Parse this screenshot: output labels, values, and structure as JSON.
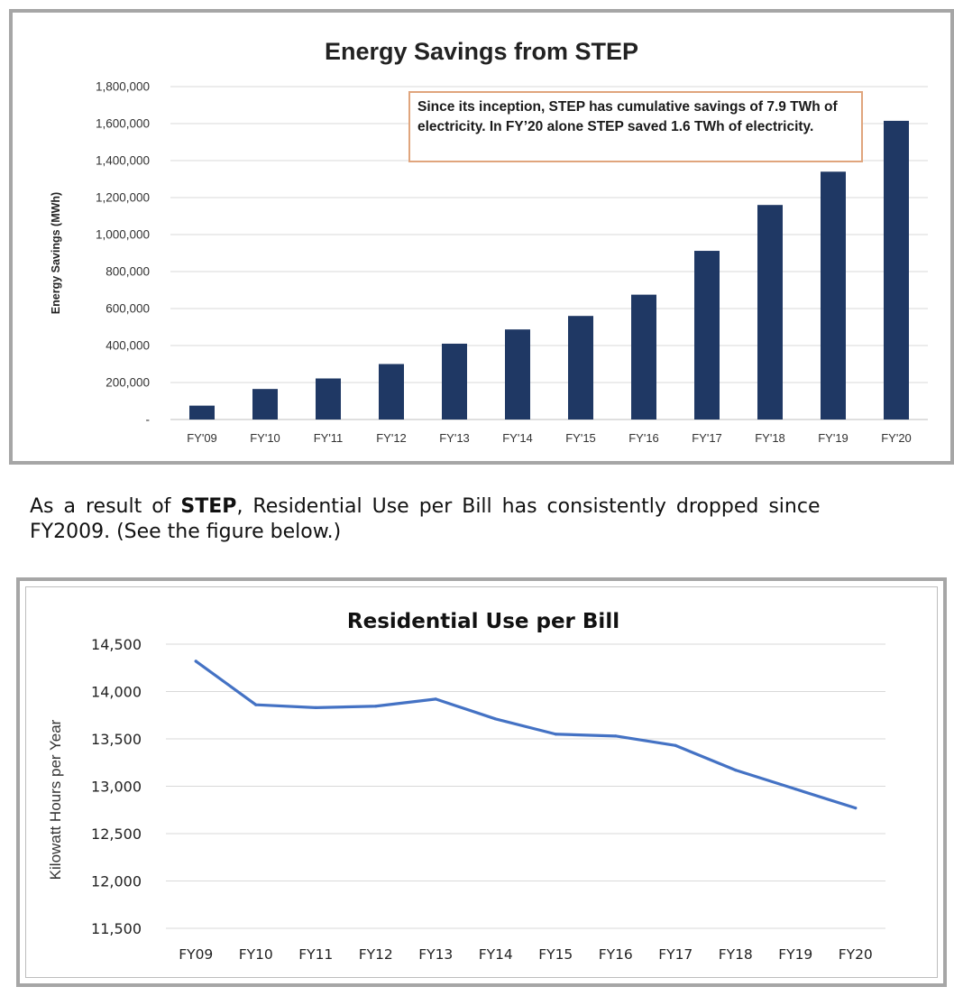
{
  "colors": {
    "bar": "#1f3864",
    "line": "#4472c4",
    "grid": "#d9d9d9",
    "frame": "#a6a6a6",
    "annotation_border": "#e0a57d"
  },
  "chart_data": [
    {
      "type": "bar",
      "title": "Energy Savings from STEP",
      "xlabel": "",
      "ylabel": "Energy Savings (MWh)",
      "categories": [
        "FY'09",
        "FY'10",
        "FY'11",
        "FY'12",
        "FY'13",
        "FY'14",
        "FY'15",
        "FY'16",
        "FY'17",
        "FY'18",
        "FY'19",
        "FY'20"
      ],
      "values": [
        75000,
        165000,
        222000,
        300000,
        410000,
        487000,
        560000,
        675000,
        912000,
        1160000,
        1340000,
        1615000
      ],
      "ylim": [
        0,
        1800000
      ],
      "yticks": [
        0,
        200000,
        400000,
        600000,
        800000,
        1000000,
        1200000,
        1400000,
        1600000,
        1800000
      ],
      "ytick_labels": [
        "-",
        "200,000",
        "400,000",
        "600,000",
        "800,000",
        "1,000,000",
        "1,200,000",
        "1,400,000",
        "1,600,000",
        "1,800,000"
      ],
      "grid": true,
      "annotation": "Since its inception, STEP has cumulative savings of 7.9 TWh of electricity. In FY’20 alone STEP saved 1.6 TWh of electricity."
    },
    {
      "type": "line",
      "title": "Residential Use per Bill",
      "xlabel": "",
      "ylabel": "Kilowatt Hours per Year",
      "categories": [
        "FY09",
        "FY10",
        "FY11",
        "FY12",
        "FY13",
        "FY14",
        "FY15",
        "FY16",
        "FY17",
        "FY18",
        "FY19",
        "FY20"
      ],
      "values": [
        14320,
        13860,
        13830,
        13845,
        13920,
        13710,
        13550,
        13530,
        13430,
        13170,
        12970,
        12770
      ],
      "ylim": [
        11500,
        14500
      ],
      "yticks": [
        11500,
        12000,
        12500,
        13000,
        13500,
        14000,
        14500
      ],
      "ytick_labels": [
        "11,500",
        "12,000",
        "12,500",
        "13,000",
        "13,500",
        "14,000",
        "14,500"
      ],
      "grid": true
    }
  ],
  "text": {
    "line1_prefix": "As a result of ",
    "line1_bold": "STEP",
    "line1_suffix": ", Residential Use per Bill has consistently dropped since",
    "line2": "FY2009.  (See the figure below.)"
  }
}
